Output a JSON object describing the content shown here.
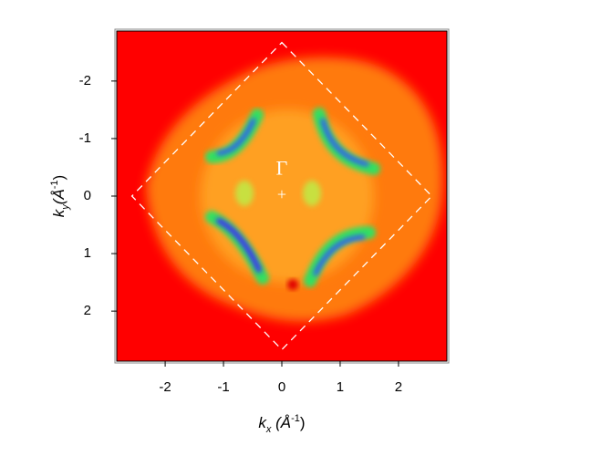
{
  "chart_data": {
    "type": "heatmap",
    "xlabel": [
      "k",
      "x",
      " (Å",
      "-1",
      ")"
    ],
    "ylabel": [
      "k",
      "y",
      "(Å",
      "-1",
      ")"
    ],
    "xlim": [
      -2.83,
      2.83
    ],
    "ylim": [
      -2.87,
      2.87
    ],
    "y_inverted": true,
    "xticks": [
      -2,
      -1,
      0,
      1,
      2
    ],
    "yticks": [
      -2,
      -1,
      0,
      1,
      2
    ],
    "zone_boundary": {
      "x": [
        0,
        2.57,
        0,
        -2.57
      ],
      "y": [
        -2.67,
        0,
        2.67,
        0
      ],
      "color": "#ffffff"
    },
    "annotations": [
      {
        "text": "Γ",
        "x": 0,
        "y": -0.45
      },
      {
        "text": "+",
        "x": 0,
        "y": 0
      }
    ]
  }
}
